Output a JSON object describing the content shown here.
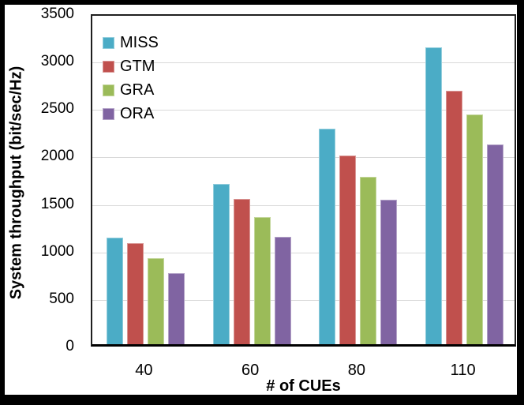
{
  "chart_data": {
    "type": "bar",
    "title": "",
    "xlabel": "# of CUEs",
    "ylabel": "System throughput (bit/sec/Hz)",
    "categories": [
      "40",
      "60",
      "80",
      "110"
    ],
    "series": [
      {
        "name": "MISS",
        "color": "#4BACC6",
        "border_color": "#92CDDC",
        "values": [
          1120,
          1690,
          2270,
          3130
        ]
      },
      {
        "name": "GTM",
        "color": "#C0504D",
        "border_color": "#D99694",
        "values": [
          1060,
          1530,
          1990,
          2670
        ]
      },
      {
        "name": "GRA",
        "color": "#9BBB59",
        "border_color": "#C3D69B",
        "values": [
          910,
          1340,
          1760,
          2420
        ]
      },
      {
        "name": "ORA",
        "color": "#8064A2",
        "border_color": "#B3A2C7",
        "values": [
          750,
          1130,
          1520,
          2100
        ]
      }
    ],
    "ylim": [
      0,
      3500
    ],
    "ytick_step": 500,
    "ytick_labels": [
      "3500",
      "3000",
      "2500",
      "2000",
      "1500",
      "1000",
      "500",
      "0"
    ],
    "grid": true,
    "gridline_color": "#D9D9D9",
    "legend_position": "top-left-inside",
    "axis_color": "#000000",
    "plot_background": "#FFFFFF",
    "frame_color": "#000000"
  }
}
